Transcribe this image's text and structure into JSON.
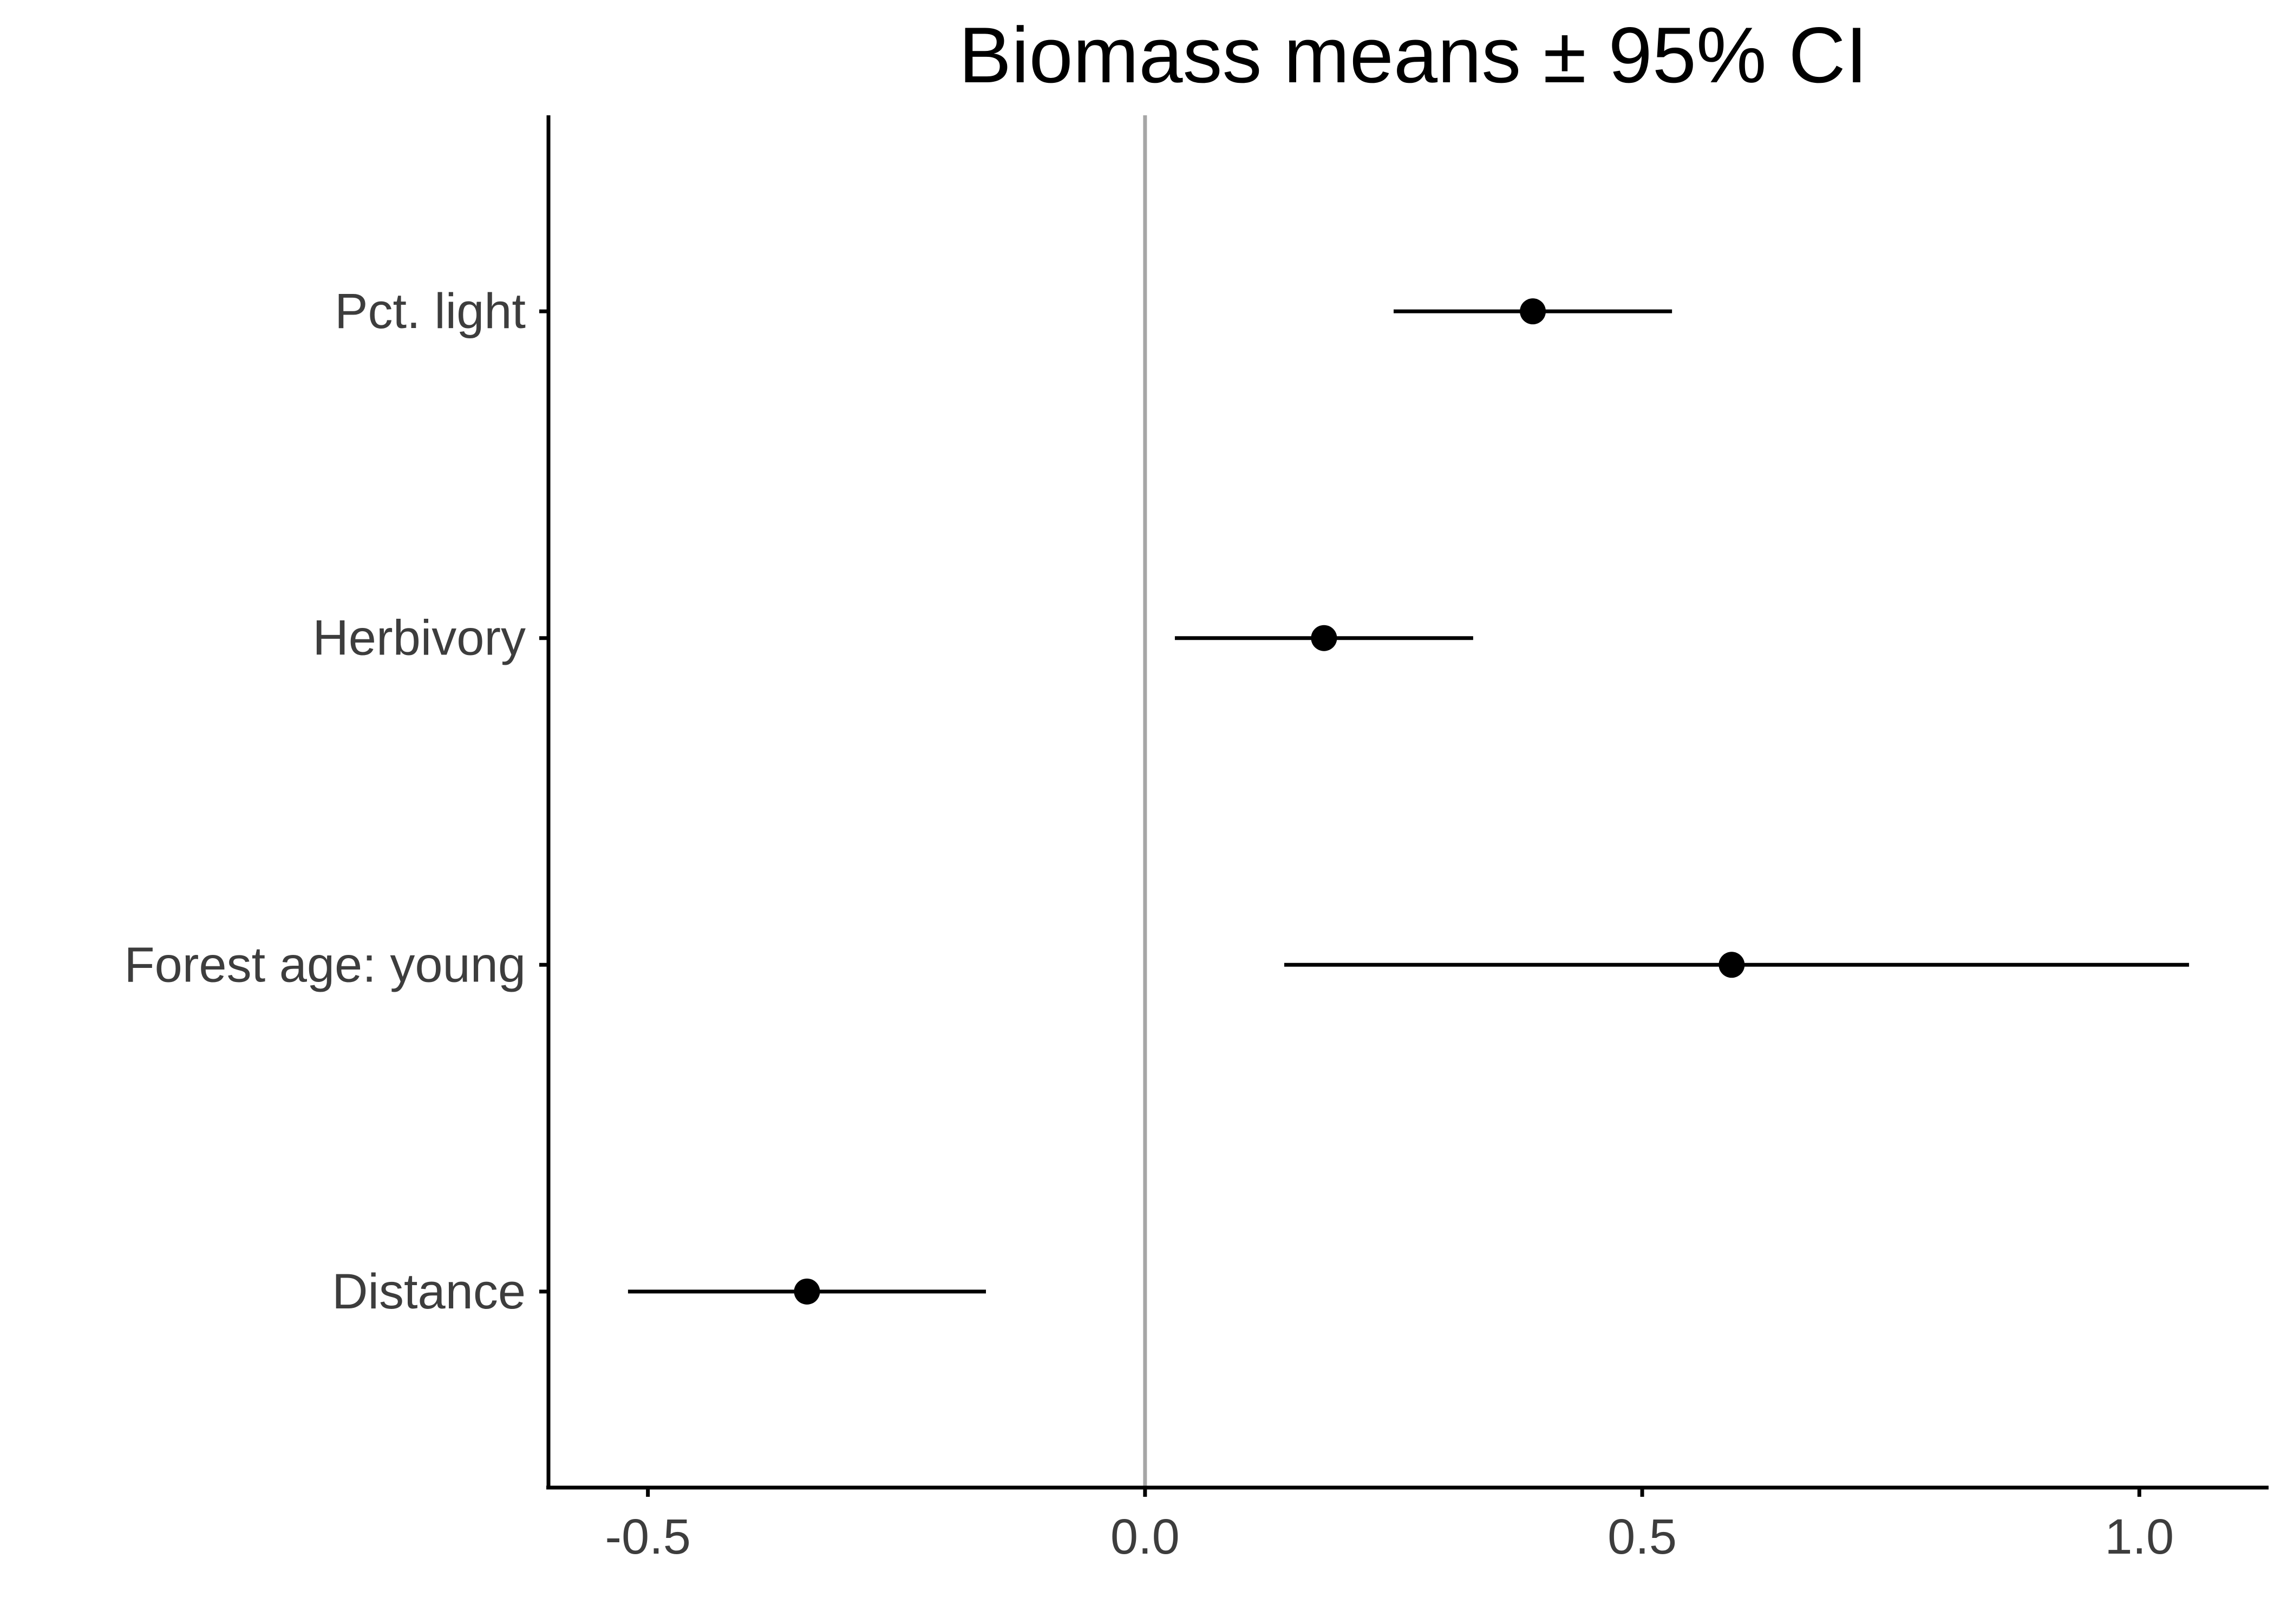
{
  "chart_data": {
    "type": "scatter",
    "subtype": "point-range",
    "title": "Biomass means ± 95% CI",
    "xlabel": "",
    "ylabel": "",
    "categories": [
      "Pct. light",
      "Herbivory",
      "Forest age: young",
      "Distance"
    ],
    "points": [
      {
        "label": "Pct. light",
        "mean": 0.39,
        "lower": 0.25,
        "upper": 0.53
      },
      {
        "label": "Herbivory",
        "mean": 0.18,
        "lower": 0.03,
        "upper": 0.33
      },
      {
        "label": "Forest age: young",
        "mean": 0.59,
        "lower": 0.14,
        "upper": 1.05
      },
      {
        "label": "Distance",
        "mean": -0.34,
        "lower": -0.52,
        "upper": -0.16
      }
    ],
    "xlim": [
      -0.6,
      1.13
    ],
    "xticks": [
      -0.5,
      0.0,
      0.5,
      1.0
    ],
    "xtick_labels": [
      "-0.5",
      "0.0",
      "0.5",
      "1.0"
    ],
    "reference_line_x": 0.0,
    "grid": false,
    "colors": {
      "points": "#000000",
      "reference_line": "#a6a6a6",
      "axes": "#000000",
      "tick_labels": "#3d3d3d"
    }
  }
}
